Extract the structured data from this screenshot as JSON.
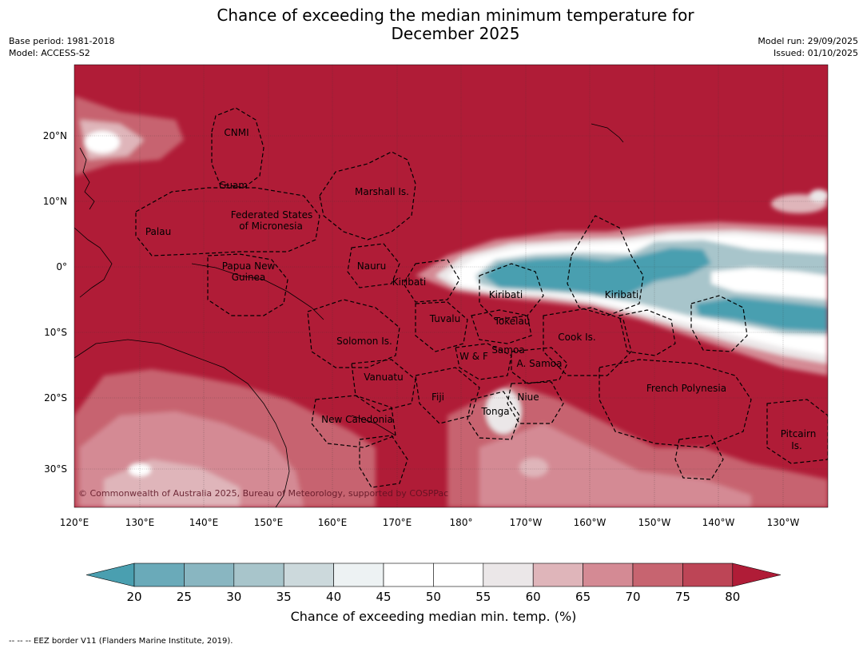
{
  "header": {
    "title_line1": "Chance of exceeding the median minimum temperature for",
    "title_line2": "December 2025",
    "base_period": "Base period: 1981-2018",
    "model": "Model: ACCESS-S2",
    "model_run": "Model run: 29/09/2025",
    "issued": "Issued: 01/10/2025"
  },
  "map": {
    "lon_ticks": [
      "120°E",
      "130°E",
      "140°E",
      "150°E",
      "160°E",
      "170°E",
      "180°",
      "170°W",
      "160°W",
      "150°W",
      "140°W",
      "130°W"
    ],
    "lat_ticks": [
      "20°N",
      "10°N",
      "0°",
      "10°S",
      "20°S",
      "30°S"
    ],
    "copyright": "© Commonwealth of Australia 2025, Bureau of Meteorology, supported by COSPPac",
    "region_labels": [
      {
        "name": "CNMI"
      },
      {
        "name": "Guam"
      },
      {
        "name": "Marshall Is."
      },
      {
        "name": "Federated States"
      },
      {
        "name": "of Micronesia"
      },
      {
        "name": "Palau"
      },
      {
        "name": "Papua New"
      },
      {
        "name": "Guinea"
      },
      {
        "name": "Nauru"
      },
      {
        "name": "Kiribati"
      },
      {
        "name": "Kiribati"
      },
      {
        "name": "Kiribati"
      },
      {
        "name": "Tuvalu"
      },
      {
        "name": "Tokelau"
      },
      {
        "name": "Cook Is."
      },
      {
        "name": "Solomon Is."
      },
      {
        "name": "W & F"
      },
      {
        "name": "Samoa"
      },
      {
        "name": "A. Samoa"
      },
      {
        "name": "Vanuatu"
      },
      {
        "name": "Fiji"
      },
      {
        "name": "Niue"
      },
      {
        "name": "French Polynesia"
      },
      {
        "name": "Tonga"
      },
      {
        "name": "New Caledonia"
      },
      {
        "name": "Pitcairn"
      },
      {
        "name": "Is."
      }
    ]
  },
  "colorbar": {
    "ticks": [
      "20",
      "25",
      "30",
      "35",
      "40",
      "45",
      "50",
      "55",
      "60",
      "65",
      "70",
      "75",
      "80"
    ],
    "colors": [
      "#4a9fb0",
      "#6aaab9",
      "#89b6c1",
      "#a8c5cb",
      "#ccd9dc",
      "#edf2f3",
      "#ffffff",
      "#ffffff",
      "#ebe7e8",
      "#dfb5ba",
      "#d48a94",
      "#c76470",
      "#bd4556",
      "#b01c37"
    ],
    "label": "Chance of exceeding median min. temp. (%)"
  },
  "footnote": "--  --  -- EEZ border V11 (Flanders Marine Institute, 2019).",
  "colors": {
    "above": "#b01c37",
    "below": "#4a9fb0"
  }
}
